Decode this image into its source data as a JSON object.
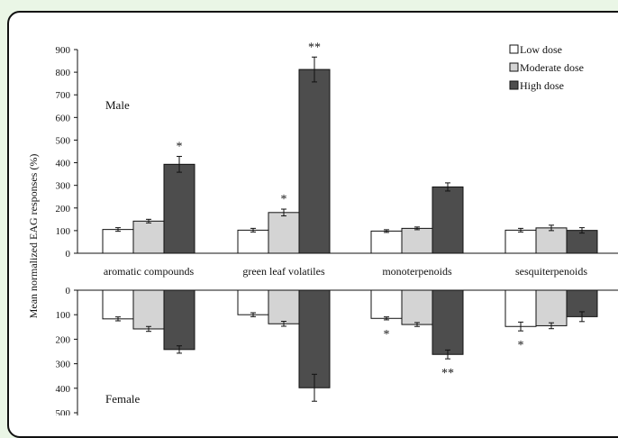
{
  "chart_data": [
    {
      "type": "bar",
      "panel": "male",
      "panel_label": "Male",
      "categories": [
        "aromatic compounds",
        "green leaf volatiles",
        "monoterpenoids",
        "sesquiterpenoids"
      ],
      "series": [
        {
          "name": "Low dose",
          "color": "#ffffff",
          "values": [
            105,
            102,
            98,
            102
          ],
          "errors": [
            8,
            8,
            6,
            8
          ]
        },
        {
          "name": "Moderate dose",
          "color": "#d4d4d4",
          "values": [
            142,
            180,
            110,
            112
          ],
          "errors": [
            8,
            15,
            6,
            12
          ]
        },
        {
          "name": "High dose",
          "color": "#4d4d4d",
          "values": [
            393,
            812,
            293,
            101
          ],
          "errors": [
            35,
            55,
            18,
            12
          ]
        }
      ],
      "significance": [
        [
          "",
          "",
          "",
          ""
        ],
        [
          "",
          "*",
          "",
          ""
        ],
        [
          "*",
          "**",
          "",
          ""
        ]
      ],
      "ylim": [
        0,
        900
      ],
      "yticks": [
        0,
        100,
        200,
        300,
        400,
        500,
        600,
        700,
        800,
        900
      ],
      "ylabel": "Mean normalized EAG responses (%)",
      "legend_position": "top-right"
    },
    {
      "type": "bar",
      "panel": "female",
      "panel_label": "Female",
      "orientation": "downward",
      "categories": [
        "aromatic compounds",
        "green leaf volatiles",
        "monoterpenoids",
        "sesquiterpenoids"
      ],
      "series": [
        {
          "name": "Low dose",
          "color": "#ffffff",
          "values": [
            117,
            100,
            115,
            148
          ],
          "errors": [
            8,
            8,
            6,
            18
          ]
        },
        {
          "name": "Moderate dose",
          "color": "#d4d4d4",
          "values": [
            158,
            137,
            140,
            145
          ],
          "errors": [
            10,
            10,
            8,
            12
          ]
        },
        {
          "name": "High dose",
          "color": "#4d4d4d",
          "values": [
            242,
            398,
            262,
            108
          ],
          "errors": [
            15,
            55,
            18,
            20
          ]
        }
      ],
      "significance": [
        [
          "",
          "",
          "*",
          "*"
        ],
        [
          "",
          "",
          "",
          ""
        ],
        [
          "",
          "",
          "**",
          ""
        ]
      ],
      "ylim": [
        0,
        500
      ],
      "yticks": [
        0,
        100,
        200,
        300,
        400,
        500
      ]
    }
  ]
}
